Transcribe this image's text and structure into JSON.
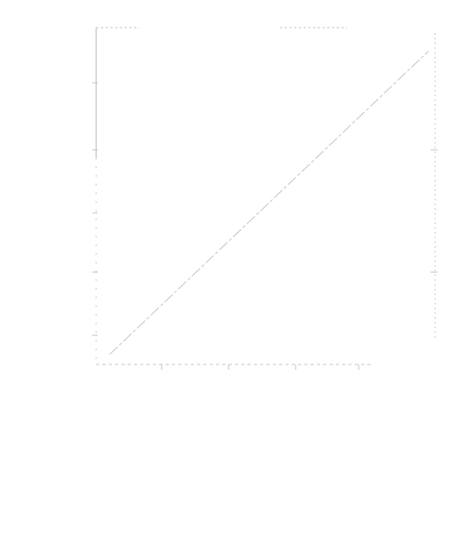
{
  "chart_data": {
    "type": "line",
    "title": "",
    "xlabel": "",
    "ylabel": "",
    "xlim": [
      0,
      1
    ],
    "ylim": [
      0,
      1
    ],
    "grid": false,
    "series": [
      {
        "x": [
          0.04,
          0.98
        ],
        "y": [
          0.03,
          0.93
        ]
      }
    ],
    "line_color": "#cccccc",
    "axis_color": "#bfbfbf"
  },
  "caption": {
    "text": ""
  }
}
